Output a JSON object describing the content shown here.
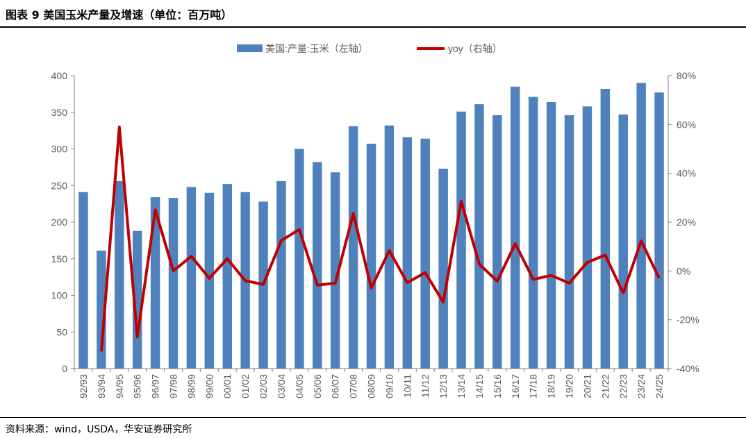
{
  "header": {
    "title": "图表 9 美国玉米产量及增速（单位：百万吨）"
  },
  "footer": {
    "source": "资料来源：wind，USDA，华安证券研究所"
  },
  "chart_data": {
    "type": "bar+line",
    "categories": [
      "92/93",
      "93/94",
      "94/95",
      "95/96",
      "96/97",
      "97/98",
      "98/99",
      "99/00",
      "00/01",
      "01/02",
      "02/03",
      "03/04",
      "04/05",
      "05/06",
      "06/07",
      "07/08",
      "08/09",
      "09/10",
      "10/11",
      "11/12",
      "12/13",
      "13/14",
      "14/15",
      "15/16",
      "16/17",
      "17/18",
      "18/19",
      "19/20",
      "20/21",
      "21/22",
      "22/23",
      "23/24",
      "24/25"
    ],
    "series": [
      {
        "name": "美国:产量:玉米（左轴）",
        "kind": "bar",
        "axis": "left",
        "color": "#4f81bd",
        "values": [
          241,
          161,
          256,
          188,
          234,
          233,
          248,
          240,
          252,
          241,
          228,
          256,
          300,
          282,
          268,
          331,
          307,
          332,
          316,
          314,
          273,
          351,
          361,
          346,
          385,
          371,
          364,
          346,
          358,
          382,
          347,
          390,
          377
        ]
      },
      {
        "name": "yoy（右轴）",
        "kind": "line",
        "axis": "right",
        "color": "#c00000",
        "values": [
          null,
          -33,
          59,
          -27,
          25,
          0,
          6,
          -3,
          5,
          -4,
          -5.5,
          12.5,
          17,
          -5.8,
          -5,
          23.5,
          -7,
          8.3,
          -4.8,
          -0.7,
          -12.8,
          28.5,
          2.8,
          -4.2,
          11.2,
          -3.5,
          -1.8,
          -5,
          3.5,
          6.5,
          -9,
          12.3,
          -3
        ]
      }
    ],
    "left_axis": {
      "min": 0,
      "max": 400,
      "step": 50,
      "ticks": [
        "0",
        "50",
        "100",
        "150",
        "200",
        "250",
        "300",
        "350",
        "400"
      ]
    },
    "right_axis": {
      "min": -40,
      "max": 80,
      "step": 20,
      "ticks": [
        "-40%",
        "-20%",
        "0%",
        "20%",
        "40%",
        "60%",
        "80%"
      ]
    },
    "legend_position": "top-center",
    "grid": false
  }
}
